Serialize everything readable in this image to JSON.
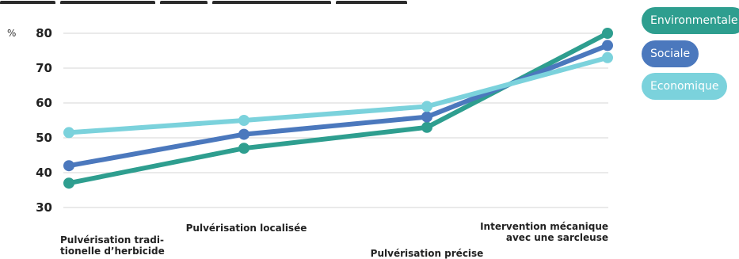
{
  "chart_data": {
    "type": "line",
    "ylabel": "%",
    "ylim": [
      30,
      80
    ],
    "yticks": [
      30,
      40,
      50,
      60,
      70,
      80
    ],
    "grid": true,
    "legend_position": "right",
    "categories": [
      {
        "lines": [
          "Pulvérisation tradi-",
          "tionelle d’herbicide"
        ]
      },
      {
        "lines": [
          "Pulvérisation localisée"
        ]
      },
      {
        "lines": [
          "Pulvérisation précise"
        ]
      },
      {
        "lines": [
          "Intervention mécanique",
          "avec une sarcleuse"
        ]
      }
    ],
    "series": [
      {
        "name": "Environmentale",
        "color": "#2e9e8f",
        "values": [
          37,
          47,
          53,
          80
        ]
      },
      {
        "name": "Sociale",
        "color": "#4b78bd",
        "values": [
          42,
          51,
          56,
          76.5
        ]
      },
      {
        "name": "Economique",
        "color": "#7bd2dc",
        "values": [
          51.5,
          55,
          59,
          73
        ]
      }
    ]
  }
}
